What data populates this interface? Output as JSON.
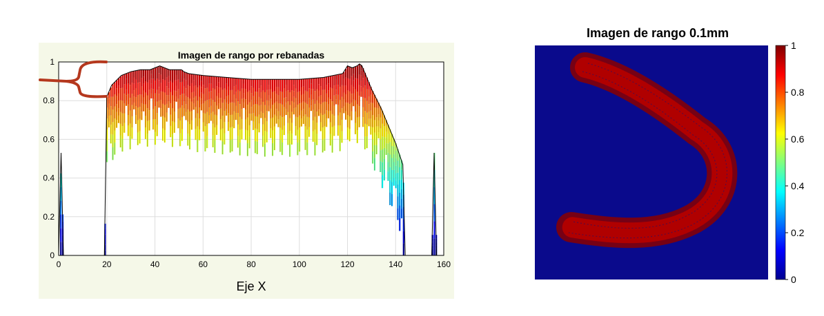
{
  "chart_data": [
    {
      "type": "area",
      "title": "Imagen de rango por rebanadas",
      "xlabel": "Eje X",
      "ylabel": "",
      "xlim": [
        0,
        160
      ],
      "ylim": [
        0,
        1
      ],
      "xticks": [
        "0",
        "20",
        "40",
        "60",
        "80",
        "100",
        "120",
        "140",
        "160"
      ],
      "yticks": [
        "0",
        "0.2",
        "0.4",
        "0.6",
        "0.8",
        "1"
      ],
      "grid": true,
      "colormap": "jet",
      "series": [
        {
          "x": [
            0,
            1,
            2,
            19,
            20,
            22,
            26,
            30,
            34,
            38,
            42,
            44,
            46,
            47,
            48,
            50,
            51,
            52,
            54,
            60,
            70,
            80,
            90,
            100,
            110,
            118,
            120,
            122,
            124,
            125,
            126,
            130,
            134,
            140,
            143,
            144,
            155,
            156,
            157,
            160
          ],
          "values": [
            0,
            0.53,
            0,
            0,
            0.82,
            0.88,
            0.93,
            0.95,
            0.96,
            0.96,
            0.98,
            0.97,
            0.96,
            0.96,
            0.96,
            0.96,
            0.96,
            0.95,
            0.94,
            0.93,
            0.92,
            0.91,
            0.91,
            0.91,
            0.92,
            0.94,
            0.98,
            0.97,
            0.98,
            0.99,
            0.98,
            0.86,
            0.76,
            0.58,
            0.47,
            0,
            0,
            0.53,
            0,
            0
          ]
        }
      ],
      "colors": {
        "frame": "#000000",
        "grid": "#dddddd",
        "bracket": "#b5381e",
        "background": "#f5f8e8"
      }
    },
    {
      "type": "heatmap",
      "title": "Imagen de rango 0.1mm",
      "xlabel": "",
      "ylabel": "",
      "colorbar_ticks": [
        "0",
        "0.2",
        "0.4",
        "0.6",
        "0.8",
        "1"
      ],
      "clim": [
        0,
        1
      ],
      "colormap": "jet",
      "background_value": 0,
      "object_value": 1,
      "colors": {
        "background": "#0a0a8c",
        "object": "#a00000"
      }
    }
  ]
}
